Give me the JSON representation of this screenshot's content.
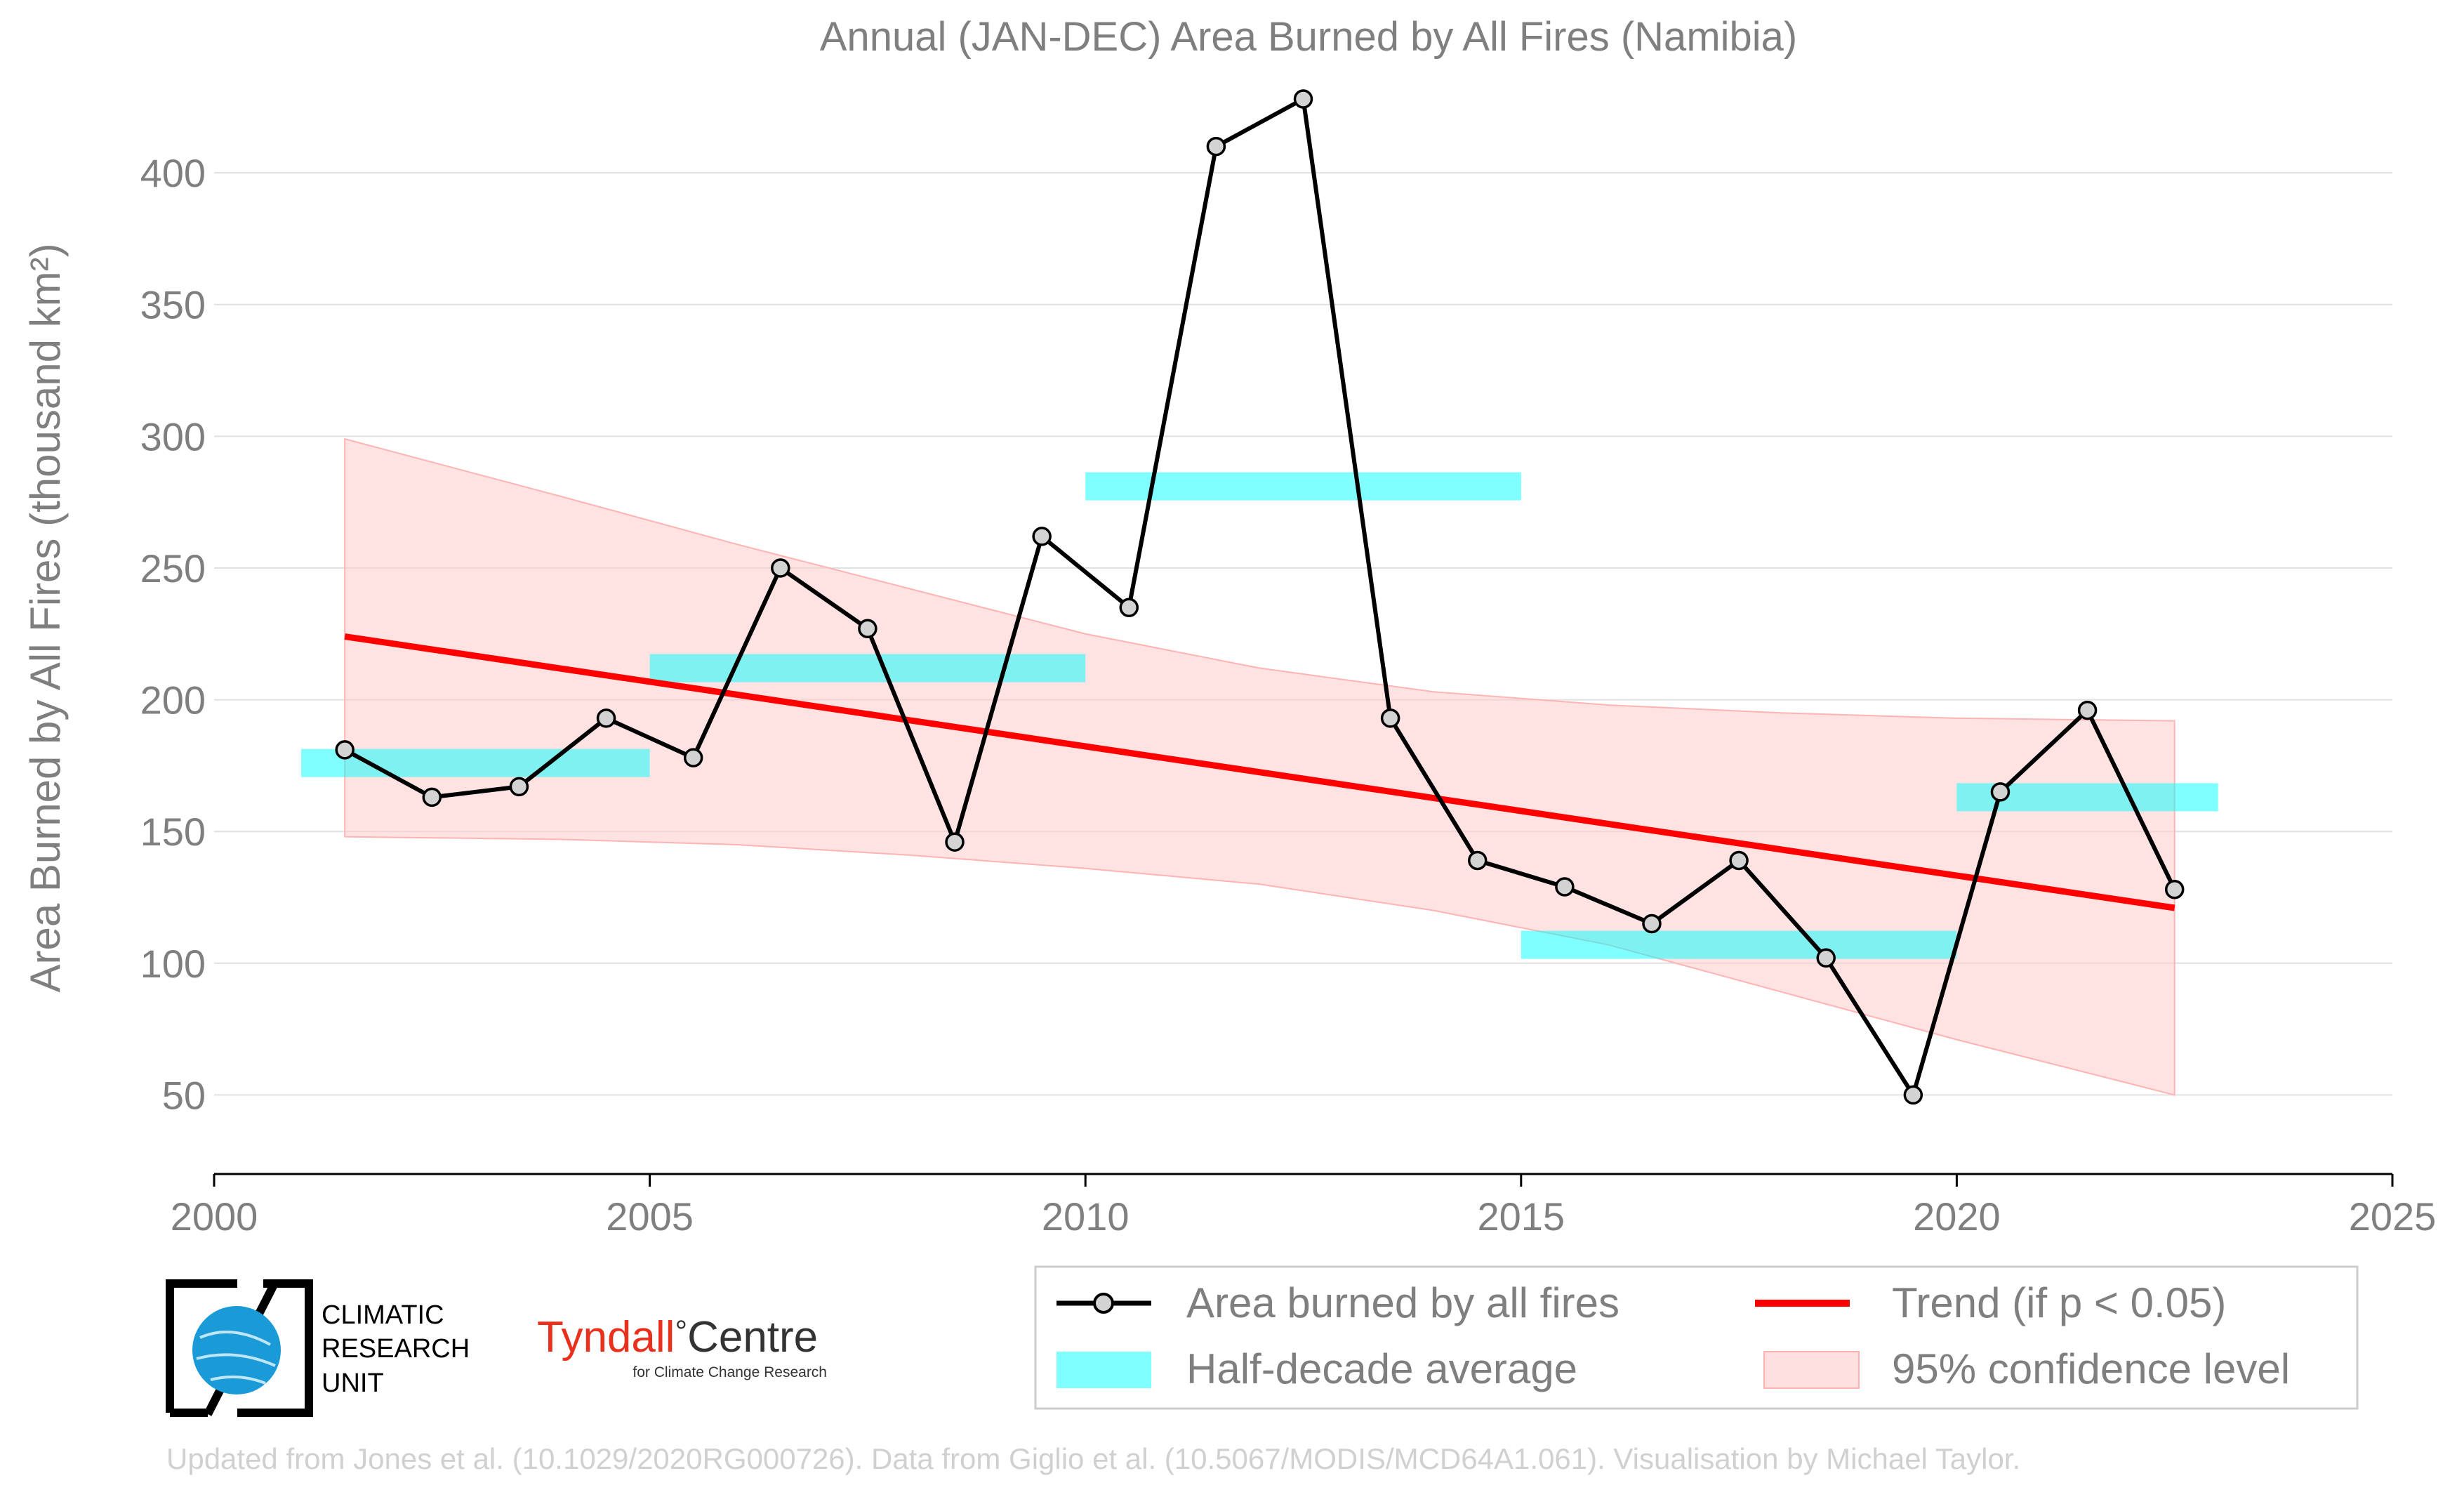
{
  "chart_data": {
    "type": "line",
    "title": "Annual (JAN-DEC) Area Burned by All Fires (Namibia)",
    "ylabel": "Area Burned by All Fires (thousand km²)",
    "xlabel": "",
    "xlim": [
      2000,
      2025
    ],
    "ylim": [
      20,
      440
    ],
    "x_ticks": [
      2000,
      2005,
      2010,
      2015,
      2020,
      2025
    ],
    "y_ticks": [
      50,
      100,
      150,
      200,
      250,
      300,
      350,
      400
    ],
    "grid": "horizontal",
    "series": [
      {
        "name": "Area burned by all fires",
        "color": "#000000",
        "points": [
          {
            "x": 2001.5,
            "y": 181
          },
          {
            "x": 2002.5,
            "y": 163
          },
          {
            "x": 2003.5,
            "y": 167
          },
          {
            "x": 2004.5,
            "y": 193
          },
          {
            "x": 2005.5,
            "y": 178
          },
          {
            "x": 2006.5,
            "y": 250
          },
          {
            "x": 2007.5,
            "y": 227
          },
          {
            "x": 2008.5,
            "y": 146
          },
          {
            "x": 2009.5,
            "y": 262
          },
          {
            "x": 2010.5,
            "y": 235
          },
          {
            "x": 2011.5,
            "y": 410
          },
          {
            "x": 2012.5,
            "y": 428
          },
          {
            "x": 2013.5,
            "y": 193
          },
          {
            "x": 2014.5,
            "y": 139
          },
          {
            "x": 2015.5,
            "y": 129
          },
          {
            "x": 2016.5,
            "y": 115
          },
          {
            "x": 2017.5,
            "y": 139
          },
          {
            "x": 2018.5,
            "y": 102
          },
          {
            "x": 2019.5,
            "y": 50
          },
          {
            "x": 2020.5,
            "y": 165
          },
          {
            "x": 2021.5,
            "y": 196
          },
          {
            "x": 2022.5,
            "y": 128
          }
        ]
      },
      {
        "name": "Half-decade average",
        "color": "#00ffff",
        "segments": [
          {
            "x0": 2001,
            "x1": 2005,
            "y": 176
          },
          {
            "x0": 2005,
            "x1": 2010,
            "y": 212
          },
          {
            "x0": 2010,
            "x1": 2015,
            "y": 281
          },
          {
            "x0": 2015,
            "x1": 2020,
            "y": 107
          },
          {
            "x0": 2020,
            "x1": 2023,
            "y": 163
          }
        ]
      },
      {
        "name": "Trend (if p < 0.05)",
        "color": "#ff0000",
        "points": [
          {
            "x": 2001.5,
            "y": 224
          },
          {
            "x": 2022.5,
            "y": 121
          }
        ]
      },
      {
        "name": "95% confidence level",
        "color": "#ffcccc",
        "upper": [
          {
            "x": 2001.5,
            "y": 299
          },
          {
            "x": 2004,
            "y": 277
          },
          {
            "x": 2006,
            "y": 259
          },
          {
            "x": 2008,
            "y": 242
          },
          {
            "x": 2010,
            "y": 225
          },
          {
            "x": 2012,
            "y": 212
          },
          {
            "x": 2014,
            "y": 203
          },
          {
            "x": 2016,
            "y": 198
          },
          {
            "x": 2018,
            "y": 195
          },
          {
            "x": 2020,
            "y": 193
          },
          {
            "x": 2022.5,
            "y": 192
          }
        ],
        "lower": [
          {
            "x": 2001.5,
            "y": 148
          },
          {
            "x": 2004,
            "y": 147
          },
          {
            "x": 2006,
            "y": 145
          },
          {
            "x": 2008,
            "y": 141
          },
          {
            "x": 2010,
            "y": 136
          },
          {
            "x": 2012,
            "y": 130
          },
          {
            "x": 2014,
            "y": 120
          },
          {
            "x": 2016,
            "y": 107
          },
          {
            "x": 2018,
            "y": 89
          },
          {
            "x": 2020,
            "y": 71
          },
          {
            "x": 2022.5,
            "y": 50
          }
        ]
      }
    ],
    "legend": {
      "placement": "bottom-right",
      "items": [
        "Area burned by all fires",
        "Trend (if p < 0.05)",
        "Half-decade average",
        "95% confidence level"
      ]
    }
  },
  "logos": {
    "cru_lines": [
      "CLIMATIC",
      "RESEARCH",
      "UNIT"
    ],
    "tyndall_main": "Tyndall",
    "tyndall_degree": "°",
    "tyndall_centre": "Centre",
    "tyndall_sub": "for Climate Change Research"
  },
  "footer": {
    "credit": "Updated from Jones et al. (10.1029/2020RG000726). Data from Giglio et al. (10.5067/MODIS/MCD64A1.061). Visualisation by Michael Taylor."
  },
  "colors": {
    "text": "#7f7f7f",
    "grid": "#e0e0e0",
    "series": "#000000",
    "trend": "#ff0000",
    "half_decade": "#00ffff",
    "confidence": "#ffcccc",
    "cru_globe": "#1a9ad6",
    "tyndall": "#e8301c"
  }
}
